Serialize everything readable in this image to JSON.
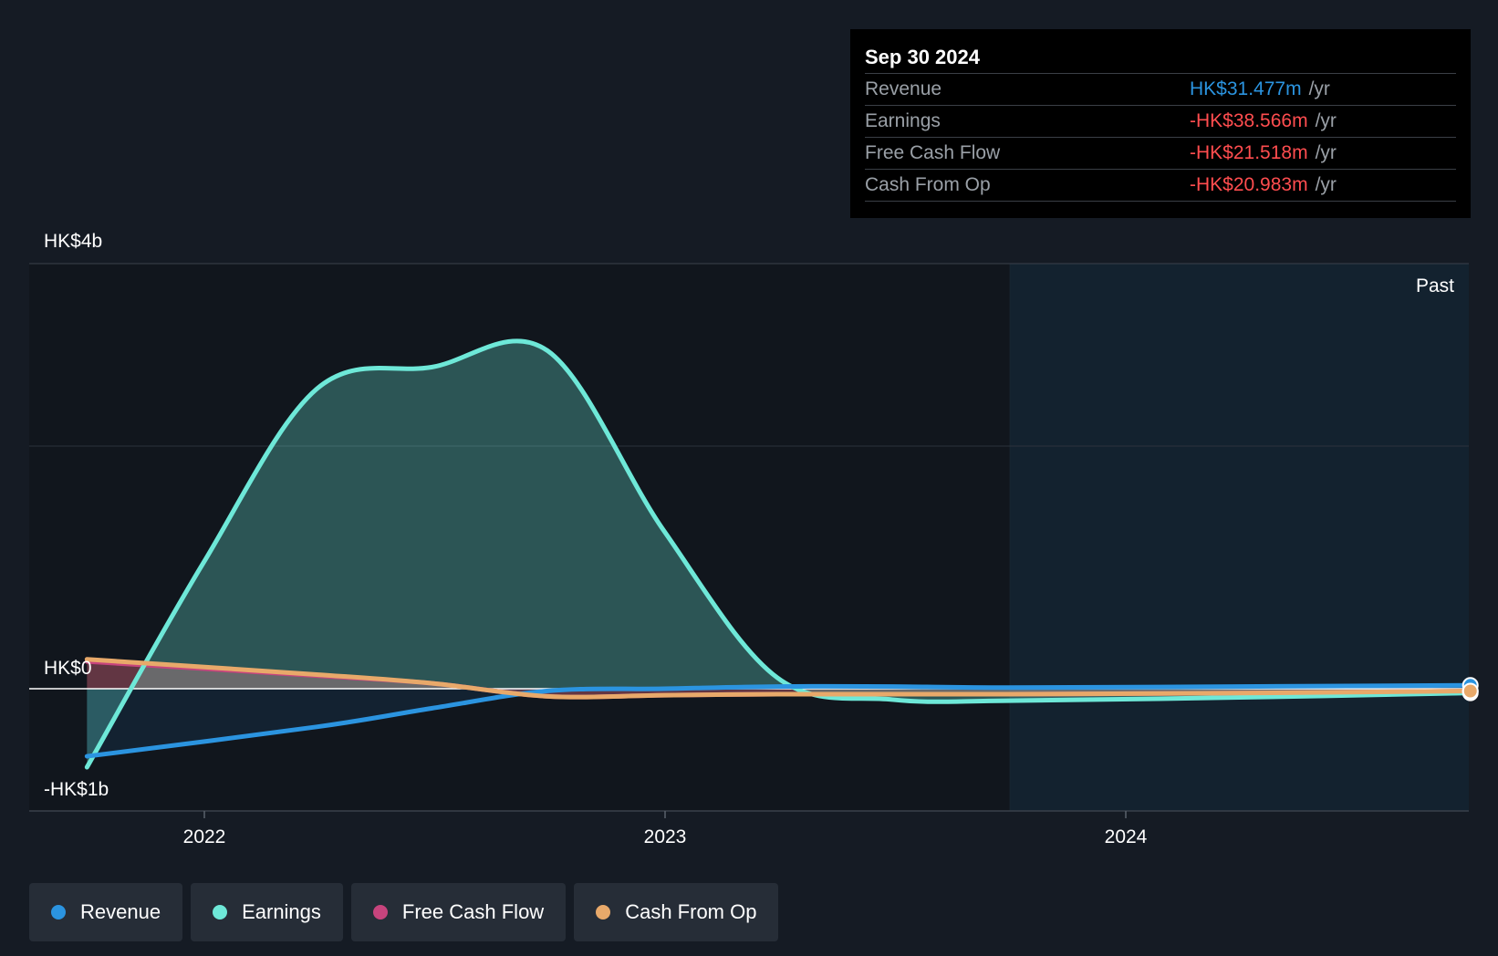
{
  "tooltip": {
    "date": "Sep 30 2024",
    "rows": [
      {
        "label": "Revenue",
        "value": "HK$31.477m",
        "unit": "/yr"
      },
      {
        "label": "Earnings",
        "value": "-HK$38.566m",
        "unit": "/yr"
      },
      {
        "label": "Free Cash Flow",
        "value": "-HK$21.518m",
        "unit": "/yr"
      },
      {
        "label": "Cash From Op",
        "value": "-HK$20.983m",
        "unit": "/yr"
      }
    ]
  },
  "legend": [
    {
      "label": "Revenue",
      "color": "#2b94e0"
    },
    {
      "label": "Earnings",
      "color": "#6ee8d8"
    },
    {
      "label": "Free Cash Flow",
      "color": "#c7447d"
    },
    {
      "label": "Cash From Op",
      "color": "#e8a96a"
    }
  ],
  "chart_data": {
    "type": "area",
    "y_labels": {
      "top": "HK$4b",
      "zero": "HK$0",
      "bottom": "-HK$1b"
    },
    "past_label": "Past",
    "x_ticks": [
      "2022",
      "2023",
      "2024"
    ],
    "ylim": [
      -1.0,
      3.6
    ],
    "past_start": "2023-10-01",
    "series": [
      {
        "name": "Revenue",
        "color": "#2b94e0",
        "points": [
          [
            "2021-09-30",
            -0.62
          ],
          [
            "2022-03-31",
            -0.35
          ],
          [
            "2022-06-30",
            -0.18
          ],
          [
            "2022-09-30",
            -0.02
          ],
          [
            "2022-12-31",
            0.0
          ],
          [
            "2023-03-31",
            0.02
          ],
          [
            "2023-06-30",
            0.02
          ],
          [
            "2023-09-30",
            0.01
          ],
          [
            "2024-03-31",
            0.02
          ],
          [
            "2024-09-30",
            0.031
          ]
        ]
      },
      {
        "name": "Earnings",
        "color": "#6ee8d8",
        "points": [
          [
            "2021-09-30",
            -0.72
          ],
          [
            "2021-12-31",
            1.15
          ],
          [
            "2022-03-31",
            2.75
          ],
          [
            "2022-06-30",
            2.95
          ],
          [
            "2022-09-30",
            3.1
          ],
          [
            "2022-12-31",
            1.45
          ],
          [
            "2023-03-31",
            0.1
          ],
          [
            "2023-06-30",
            -0.1
          ],
          [
            "2023-09-30",
            -0.11
          ],
          [
            "2024-03-31",
            -0.08
          ],
          [
            "2024-09-30",
            -0.039
          ]
        ]
      },
      {
        "name": "Free Cash Flow",
        "color": "#c7447d",
        "points": [
          [
            "2021-09-30",
            0.25
          ],
          [
            "2022-03-31",
            0.12
          ],
          [
            "2022-06-30",
            0.05
          ],
          [
            "2022-09-30",
            -0.07
          ],
          [
            "2022-12-31",
            -0.06
          ],
          [
            "2023-03-31",
            -0.05
          ],
          [
            "2023-06-30",
            -0.05
          ],
          [
            "2023-09-30",
            -0.05
          ],
          [
            "2024-03-31",
            -0.04
          ],
          [
            "2024-09-30",
            -0.022
          ]
        ]
      },
      {
        "name": "Cash From Op",
        "color": "#e8a96a",
        "points": [
          [
            "2021-09-30",
            0.27
          ],
          [
            "2022-03-31",
            0.13
          ],
          [
            "2022-06-30",
            0.05
          ],
          [
            "2022-09-30",
            -0.07
          ],
          [
            "2022-12-31",
            -0.06
          ],
          [
            "2023-03-31",
            -0.05
          ],
          [
            "2023-06-30",
            -0.05
          ],
          [
            "2023-09-30",
            -0.05
          ],
          [
            "2024-03-31",
            -0.04
          ],
          [
            "2024-09-30",
            -0.021
          ]
        ]
      }
    ]
  }
}
